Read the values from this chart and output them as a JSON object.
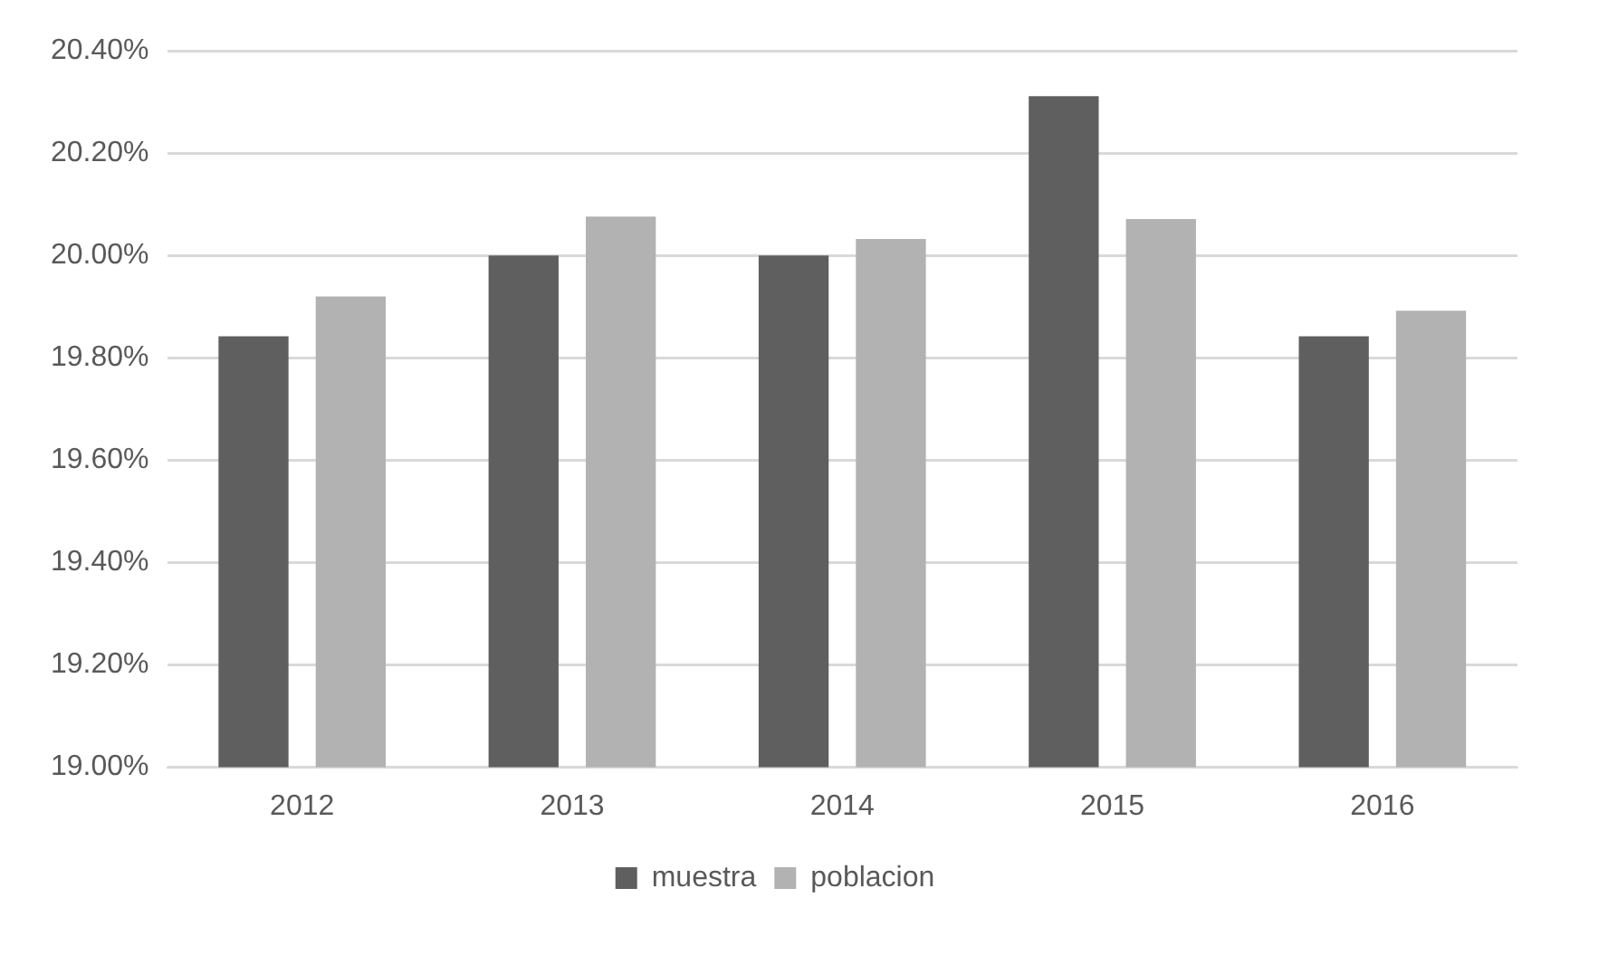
{
  "chart_data": {
    "type": "bar",
    "categories": [
      "2012",
      "2013",
      "2014",
      "2015",
      "2016"
    ],
    "series": [
      {
        "name": "muestra",
        "color": "#5f5f5f",
        "values": [
          19.842,
          20.0,
          20.0,
          20.311,
          19.842
        ]
      },
      {
        "name": "poblacion",
        "color": "#b2b2b2",
        "values": [
          19.92,
          20.076,
          20.032,
          20.071,
          19.892
        ]
      }
    ],
    "ylim": [
      19.0,
      20.4
    ],
    "yticks": [
      {
        "value": 19.0,
        "label": "19.00%"
      },
      {
        "value": 19.2,
        "label": "19.20%"
      },
      {
        "value": 19.4,
        "label": "19.40%"
      },
      {
        "value": 19.6,
        "label": "19.60%"
      },
      {
        "value": 19.8,
        "label": "19.80%"
      },
      {
        "value": 20.0,
        "label": "20.00%"
      },
      {
        "value": 20.2,
        "label": "20.20%"
      },
      {
        "value": 20.4,
        "label": "20.40%"
      }
    ],
    "grid": "y",
    "legend": "bottom"
  }
}
